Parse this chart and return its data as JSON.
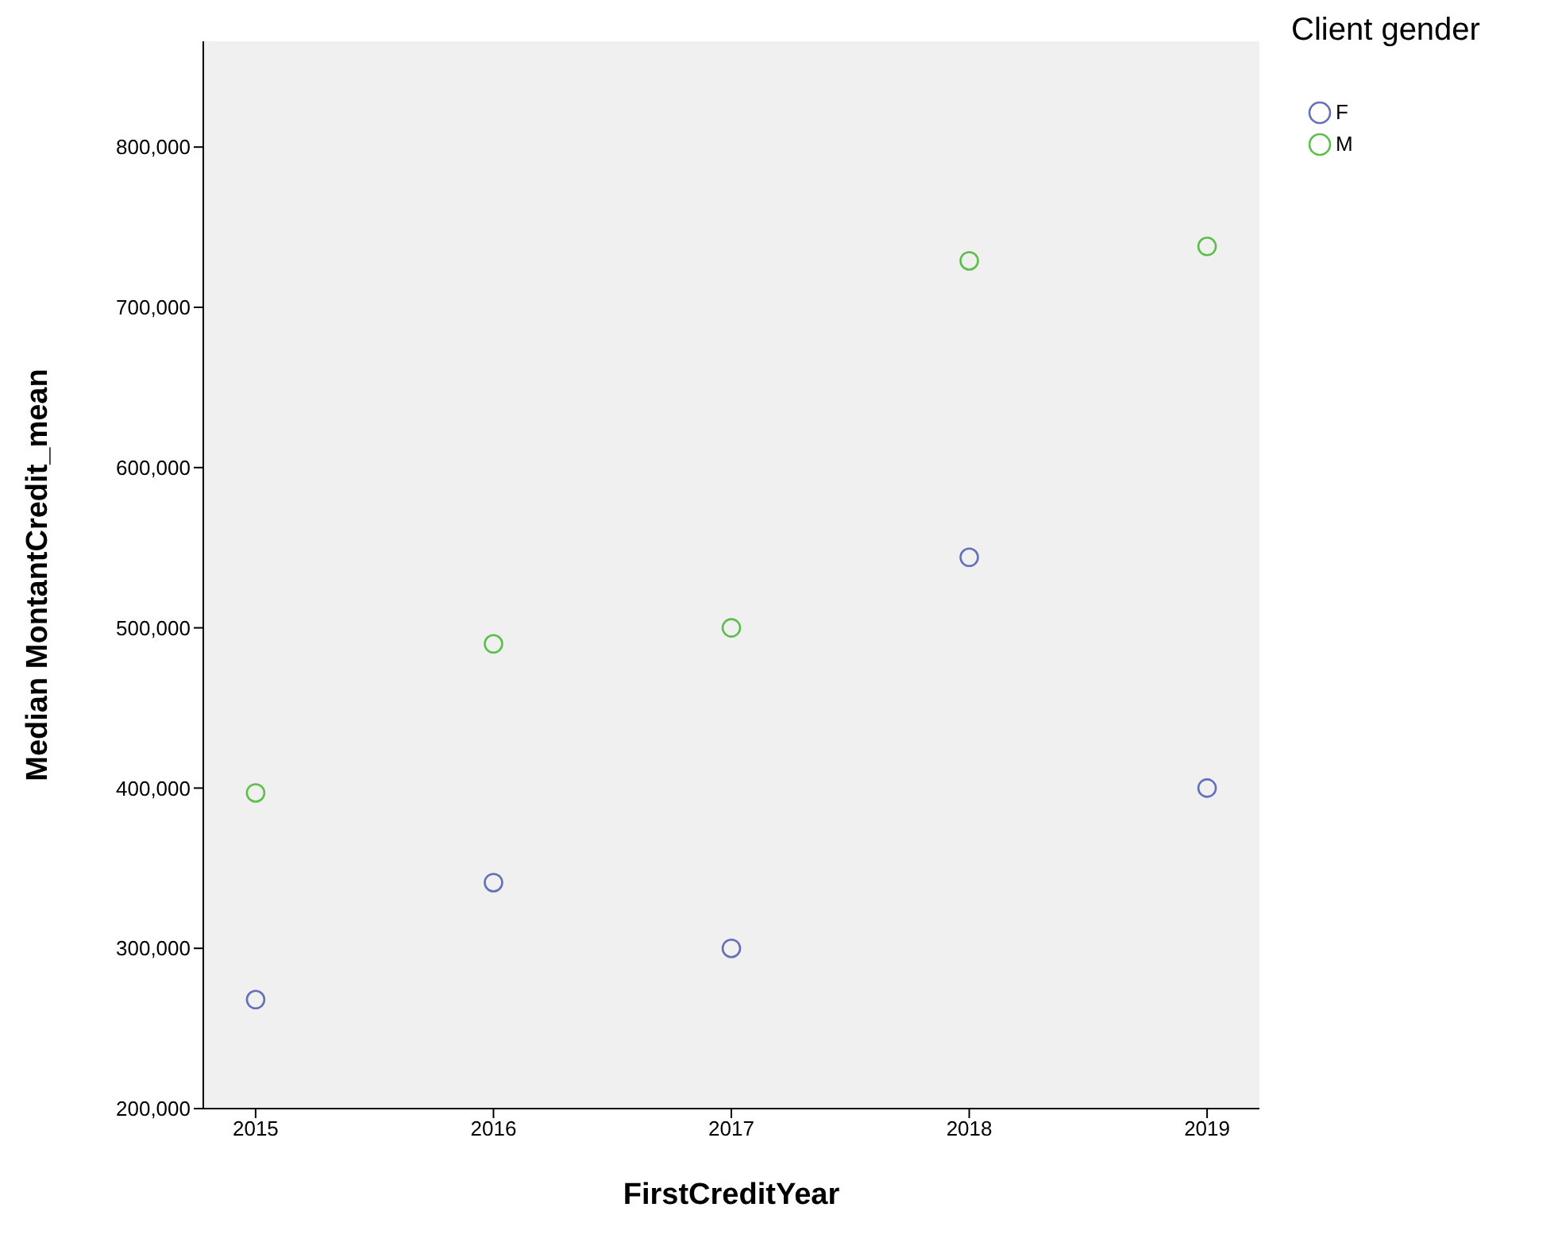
{
  "chart_data": {
    "type": "scatter",
    "xlabel": "FirstCreditYear",
    "ylabel": "Median MontantCredit_mean",
    "legend_title": "Client gender",
    "x": [
      2015,
      2016,
      2017,
      2018,
      2019
    ],
    "series": [
      {
        "name": "F",
        "color": "#6470b8",
        "values": [
          268000,
          341000,
          300000,
          544000,
          400000
        ]
      },
      {
        "name": "M",
        "color": "#5cbf4c",
        "values": [
          397000,
          490000,
          500000,
          729000,
          738000
        ]
      }
    ],
    "xlim": [
      2014.78,
      2019.22
    ],
    "xticks": [
      2015,
      2016,
      2017,
      2018,
      2019
    ],
    "ylim": [
      200000,
      866000
    ],
    "yticks": [
      {
        "value": 200000,
        "label": "200,000"
      },
      {
        "value": 300000,
        "label": "300,000"
      },
      {
        "value": 400000,
        "label": "400,000"
      },
      {
        "value": 500000,
        "label": "500,000"
      },
      {
        "value": 600000,
        "label": "600,000"
      },
      {
        "value": 700000,
        "label": "700,000"
      },
      {
        "value": 800000,
        "label": "800,000"
      }
    ],
    "grid": false,
    "legend": "top right",
    "marker": "circle"
  }
}
